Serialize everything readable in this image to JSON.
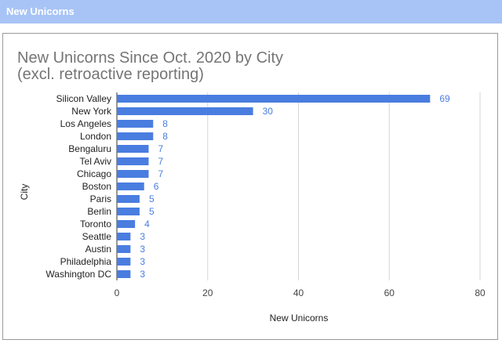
{
  "header": {
    "title": "New Unicorns"
  },
  "chart_data": {
    "type": "bar",
    "orientation": "horizontal",
    "title_lines": [
      "New Unicorns Since Oct. 2020 by City",
      "(excl. retroactive reporting)"
    ],
    "categories": [
      "Silicon Valley",
      "New York",
      "Los Angeles",
      "London",
      "Bengaluru",
      "Tel Aviv",
      "Chicago",
      "Boston",
      "Paris",
      "Berlin",
      "Toronto",
      "Seattle",
      "Austin",
      "Philadelphia",
      "Washington DC"
    ],
    "values": [
      69,
      30,
      8,
      8,
      7,
      7,
      7,
      6,
      5,
      5,
      4,
      3,
      3,
      3,
      3
    ],
    "xlabel": "New Unicorns",
    "ylabel": "City",
    "xlim": [
      0,
      80
    ],
    "xticks": [
      0,
      20,
      40,
      60,
      80
    ],
    "grid": true,
    "data_labels": true,
    "bar_color": "#4a7de0"
  }
}
